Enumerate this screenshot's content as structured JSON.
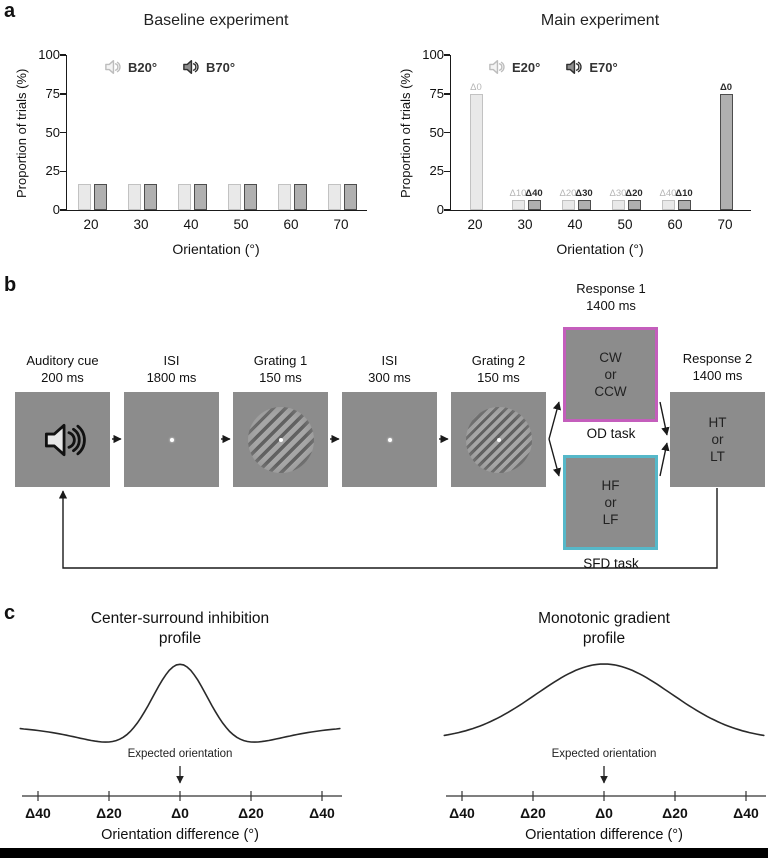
{
  "colors": {
    "frame_gray": "#8c8c8c",
    "od_task_border": "#c45ebc",
    "sfd_task_border": "#56b8c9",
    "axis_black": "#1a1a1a",
    "bar_light_fill": "#e9e9e9",
    "bar_light_border": "#c2c2c2",
    "bar_dark_fill": "#b0b0b0",
    "bar_dark_border": "#4d4d4d"
  },
  "panel_a": {
    "label": "a"
  },
  "panel_b": {
    "label": "b",
    "frames": [
      {
        "title_line1": "Auditory cue",
        "title_line2": "200 ms",
        "content": "speaker-icon"
      },
      {
        "title_line1": "ISI",
        "title_line2": "1800 ms",
        "content": "fixation-dot"
      },
      {
        "title_line1": "Grating 1",
        "title_line2": "150 ms",
        "content": "grating-patch"
      },
      {
        "title_line1": "ISI",
        "title_line2": "300 ms",
        "content": "fixation-dot"
      },
      {
        "title_line1": "Grating 2",
        "title_line2": "150 ms",
        "content": "grating-patch"
      }
    ],
    "response1": {
      "title_line1": "Response 1",
      "title_line2": "1400 ms",
      "lines": [
        "CW",
        "or",
        "CCW"
      ],
      "task": "OD task"
    },
    "sfd": {
      "lines": [
        "HF",
        "or",
        "LF"
      ],
      "task": "SFD task"
    },
    "response2": {
      "title_line1": "Response 2",
      "title_line2": "1400 ms",
      "lines": [
        "HT",
        "or",
        "LT"
      ]
    }
  },
  "panel_c": {
    "label": "c"
  },
  "chart_data": [
    {
      "id": "baseline",
      "type": "bar",
      "title": "Baseline experiment",
      "xlabel": "Orientation (°)",
      "ylabel": "Proportion of trials (%)",
      "ylim": [
        0,
        100
      ],
      "yticks": [
        100,
        75,
        50,
        25,
        0
      ],
      "grid": false,
      "legend_position": "top-left",
      "categories": [
        "20",
        "30",
        "40",
        "50",
        "60",
        "70"
      ],
      "series": [
        {
          "name": "B20°",
          "icon": "speaker-icon-light",
          "values": [
            16.7,
            16.7,
            16.7,
            16.7,
            16.7,
            16.7
          ],
          "fill": "#e9e9e9",
          "border": "#c2c2c2"
        },
        {
          "name": "B70°",
          "icon": "speaker-icon-dark",
          "values": [
            16.7,
            16.7,
            16.7,
            16.7,
            16.7,
            16.7
          ],
          "fill": "#b0b0b0",
          "border": "#4d4d4d"
        }
      ]
    },
    {
      "id": "main",
      "type": "bar",
      "title": "Main experiment",
      "xlabel": "Orientation (°)",
      "ylabel": "Proportion of trials (%)",
      "ylim": [
        0,
        100
      ],
      "yticks": [
        100,
        75,
        50,
        25,
        0
      ],
      "grid": false,
      "legend_position": "top-left",
      "categories": [
        "20",
        "30",
        "40",
        "50",
        "60",
        "70"
      ],
      "series": [
        {
          "name": "E20°",
          "icon": "speaker-icon-light",
          "values": [
            75,
            6.5,
            6.5,
            6.5,
            6.5,
            null
          ],
          "bar_labels": [
            "Δ0",
            "Δ10",
            "Δ20",
            "Δ30",
            "Δ40",
            null
          ],
          "label_color": "#b5b5b5",
          "fill": "#e9e9e9",
          "border": "#c2c2c2"
        },
        {
          "name": "E70°",
          "icon": "speaker-icon-dark",
          "values": [
            null,
            6.5,
            6.5,
            6.5,
            6.5,
            75
          ],
          "bar_labels": [
            null,
            "Δ40",
            "Δ30",
            "Δ20",
            "Δ10",
            "Δ0"
          ],
          "label_color": "#2b2b2b",
          "fill": "#b0b0b0",
          "border": "#4d4d4d"
        }
      ]
    },
    {
      "id": "center_surround",
      "type": "line",
      "title_line1": "Center-surround inhibition",
      "title_line2": "profile",
      "annotation": "Expected orientation",
      "xlabel": "Orientation difference (°)",
      "xticks": [
        "Δ40",
        "Δ20",
        "Δ0",
        "Δ20",
        "Δ40"
      ],
      "x_range_deg": [
        -45,
        45
      ],
      "profile": "difference_of_gaussians",
      "params": {
        "center_amp": 1,
        "center_sigma": 8,
        "surround_amp": 0.35,
        "surround_sigma": 20
      },
      "sample_x_deg": [
        -40,
        -30,
        -20,
        -10,
        0,
        10,
        20,
        30,
        40
      ],
      "sample_y_rel": [
        -0.05,
        -0.11,
        -0.17,
        0.15,
        0.65,
        0.15,
        -0.17,
        -0.11,
        -0.05
      ]
    },
    {
      "id": "monotonic",
      "type": "line",
      "title_line1": "Monotonic gradient",
      "title_line2": "profile",
      "annotation": "Expected orientation",
      "xlabel": "Orientation difference (°)",
      "xticks": [
        "Δ40",
        "Δ20",
        "Δ0",
        "Δ20",
        "Δ40"
      ],
      "x_range_deg": [
        -45,
        45
      ],
      "profile": "gaussian",
      "params": {
        "amp": 1,
        "sigma": 19
      },
      "sample_x_deg": [
        -40,
        -30,
        -20,
        -10,
        0,
        10,
        20,
        30,
        40
      ],
      "sample_y_rel": [
        0.11,
        0.29,
        0.57,
        0.87,
        1,
        0.87,
        0.57,
        0.29,
        0.11
      ]
    }
  ]
}
